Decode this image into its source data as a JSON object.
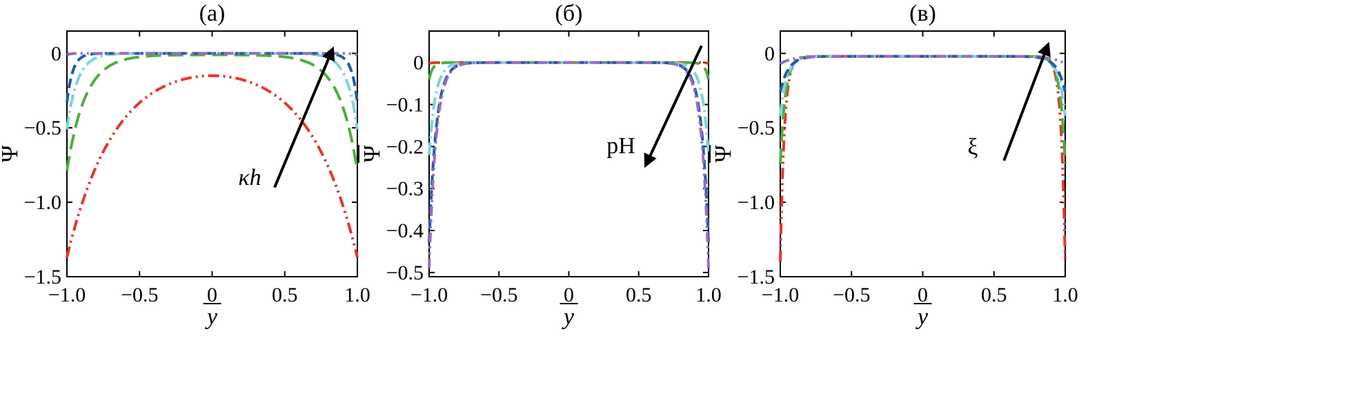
{
  "colors": {
    "s1": "#e8352b",
    "s2": "#4caf3f",
    "s3": "#7fd3dc",
    "s4": "#1f5ba8",
    "s5": "#9b6bc2"
  },
  "chart_data": [
    {
      "type": "line",
      "title": "(a)",
      "xlabel": "y",
      "ylabel": "Ψ",
      "xlim": [
        -1.0,
        1.0
      ],
      "ylim": [
        -1.5,
        0.15
      ],
      "xticks": [
        -1.0,
        -0.5,
        0,
        0.5,
        1.0
      ],
      "xtick_labels": [
        "−1.0",
        "−0.5",
        "0",
        "0.5",
        "1.0"
      ],
      "yticks": [
        0,
        -0.5,
        -1.0,
        -1.5
      ],
      "ytick_labels": [
        "0",
        "−0.5",
        "−1.0",
        "−1.5"
      ],
      "annotation": {
        "text": "κh",
        "from": [
          0.43,
          -0.9
        ],
        "to": [
          0.83,
          0.03
        ]
      },
      "series": [
        {
          "name": "s1",
          "color_key": "s1",
          "dash": "16,6,3,6,3,6",
          "wall": -1.37,
          "center": -0.15,
          "sharp": 3
        },
        {
          "name": "s2",
          "color_key": "s2",
          "dash": "22,10",
          "wall": -0.79,
          "center": -0.01,
          "sharp": 8
        },
        {
          "name": "s3",
          "color_key": "s3",
          "dash": "18,6,3,6",
          "wall": -0.51,
          "center": 0,
          "sharp": 14
        },
        {
          "name": "s4",
          "color_key": "s4",
          "dash": "14,7",
          "wall": -0.33,
          "center": 0,
          "sharp": 25
        },
        {
          "name": "s5",
          "color_key": "s5",
          "dash": "14,6,3,6,3,6",
          "wall": -0.01,
          "center": 0,
          "sharp": 40
        }
      ]
    },
    {
      "type": "line",
      "title": "(б)",
      "xlabel": "y",
      "ylabel": "Ψ",
      "xlim": [
        -1.0,
        1.0
      ],
      "ylim": [
        -0.51,
        0.075
      ],
      "xticks": [
        -1.0,
        -0.5,
        0,
        0.5,
        1.0
      ],
      "xtick_labels": [
        "−1.0",
        "−0.5",
        "0",
        "0.5",
        "1.0"
      ],
      "yticks": [
        0,
        -0.1,
        -0.2,
        -0.3,
        -0.4,
        -0.5
      ],
      "ytick_labels": [
        "0",
        "−0.1",
        "−0.2",
        "−0.3",
        "−0.4",
        "−0.5"
      ],
      "annotation": {
        "text": "pH",
        "from": [
          0.95,
          0.04
        ],
        "to": [
          0.55,
          -0.245
        ]
      },
      "series": [
        {
          "name": "s1",
          "color_key": "s1",
          "dash": "16,6,3,6,3,6",
          "wall": -0.002,
          "center": 0,
          "sharp": 40
        },
        {
          "name": "s2",
          "color_key": "s2",
          "dash": "22,10",
          "wall": -0.04,
          "center": 0,
          "sharp": 40
        },
        {
          "name": "s3",
          "color_key": "s3",
          "dash": "18,6,3,6",
          "wall": -0.22,
          "center": 0,
          "sharp": 22
        },
        {
          "name": "s4",
          "color_key": "s4",
          "dash": "14,7",
          "wall": -0.43,
          "center": 0,
          "sharp": 20
        },
        {
          "name": "s5",
          "color_key": "s5",
          "dash": "14,6,3,6,3,6",
          "wall": -0.49,
          "center": 0,
          "sharp": 20
        }
      ]
    },
    {
      "type": "line",
      "title": "(в)",
      "xlabel": "y",
      "ylabel": "Ψ",
      "xlim": [
        -1.0,
        1.0
      ],
      "ylim": [
        -1.5,
        0.15
      ],
      "xticks": [
        -1.0,
        -0.5,
        0,
        0.5,
        1.0
      ],
      "xtick_labels": [
        "−1.0",
        "−0.5",
        "0",
        "0.5",
        "1.0"
      ],
      "yticks": [
        0,
        -0.5,
        -1.0,
        -1.5
      ],
      "ytick_labels": [
        "0",
        "−0.5",
        "−1.0",
        "−1.5"
      ],
      "annotation": {
        "text": "ξ",
        "from": [
          0.57,
          -0.72
        ],
        "to": [
          0.88,
          0.06
        ]
      },
      "series": [
        {
          "name": "s1",
          "color_key": "s1",
          "dash": "16,6,3,6,3,6",
          "wall": -1.4,
          "center": -0.02,
          "sharp": 35
        },
        {
          "name": "s2",
          "color_key": "s2",
          "dash": "22,10",
          "wall": -0.74,
          "center": -0.02,
          "sharp": 28
        },
        {
          "name": "s3",
          "color_key": "s3",
          "dash": "18,6,3,6",
          "wall": -0.42,
          "center": -0.02,
          "sharp": 22
        },
        {
          "name": "s4",
          "color_key": "s4",
          "dash": "14,7",
          "wall": -0.26,
          "center": -0.02,
          "sharp": 18
        },
        {
          "name": "s5",
          "color_key": "s5",
          "dash": "14,6,3,6,3,6",
          "wall": -0.07,
          "center": -0.02,
          "sharp": 12
        }
      ]
    }
  ]
}
